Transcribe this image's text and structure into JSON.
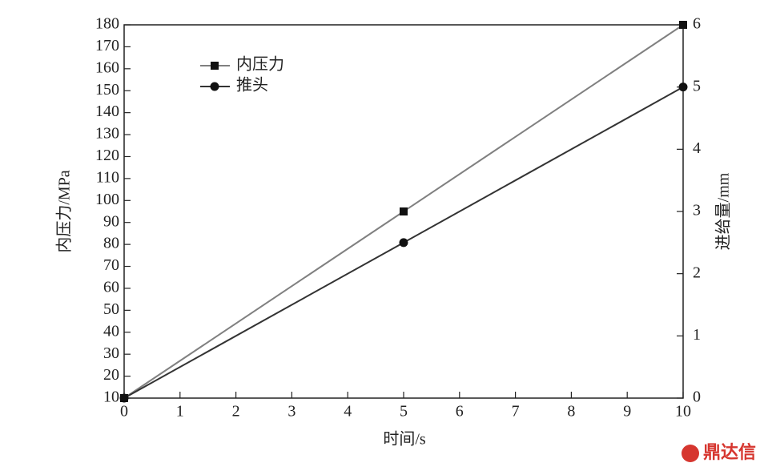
{
  "chart_data": {
    "type": "line",
    "x": [
      0,
      5,
      10
    ],
    "series": [
      {
        "name": "内压力",
        "color": "#808080",
        "marker": "square",
        "values": [
          10,
          95,
          180
        ]
      },
      {
        "name": "推头",
        "color": "#333333",
        "marker": "circle",
        "axis": "y2",
        "values": [
          0,
          2.5,
          5
        ]
      }
    ],
    "xlabel": "时间/s",
    "ylabel": "内压力/MPa",
    "y2label": "进给量/mm",
    "xlim": [
      0,
      10
    ],
    "xticks": [
      0,
      1,
      2,
      3,
      4,
      5,
      6,
      7,
      8,
      9,
      10
    ],
    "ylim": [
      10,
      180
    ],
    "yticks": [
      10,
      20,
      30,
      40,
      50,
      60,
      70,
      80,
      90,
      100,
      110,
      120,
      130,
      140,
      150,
      160,
      170,
      180
    ],
    "y2lim": [
      0,
      6
    ],
    "y2ticks": [
      0,
      1,
      2,
      3,
      4,
      5,
      6
    ],
    "legend": "upper left",
    "grid": false,
    "watermark": "鼎达信"
  }
}
